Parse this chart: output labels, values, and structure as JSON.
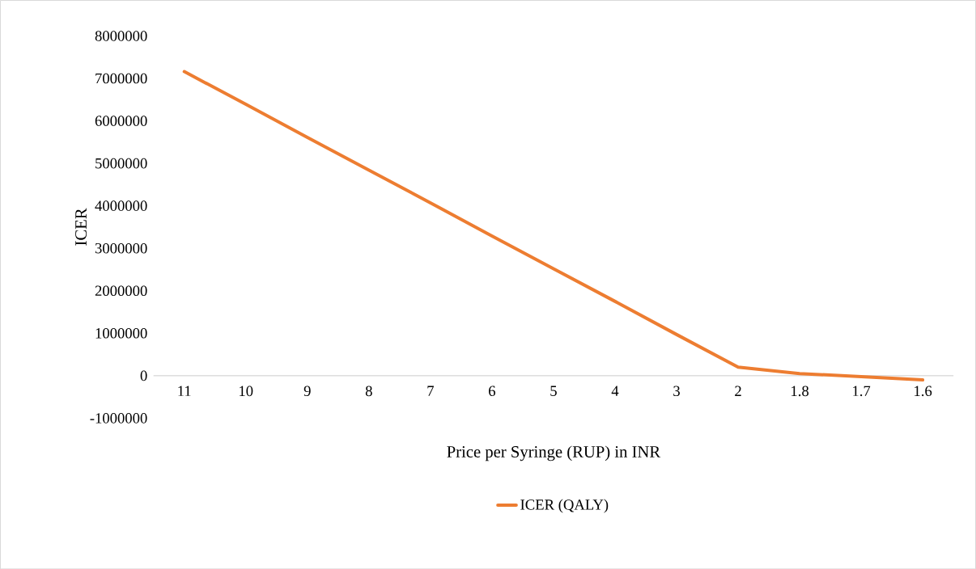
{
  "chart_data": {
    "type": "line",
    "xlabel": "Price per Syringe (RUP) in INR",
    "ylabel": "ICER",
    "categories": [
      "11",
      "10",
      "9",
      "8",
      "7",
      "6",
      "5",
      "4",
      "3",
      "2",
      "1.8",
      "1.7",
      "1.6"
    ],
    "series": [
      {
        "name": "ICER (QALY)",
        "color": "#ed7d31",
        "values": [
          7160000,
          6390000,
          5610000,
          4840000,
          4070000,
          3290000,
          2520000,
          1750000,
          970000,
          200000,
          50000,
          -20000,
          -100000
        ]
      }
    ],
    "ylim": [
      -1000000,
      8000000
    ],
    "yticks": [
      -1000000,
      0,
      1000000,
      2000000,
      3000000,
      4000000,
      5000000,
      6000000,
      7000000,
      8000000
    ],
    "legend": "bottom",
    "marker": "none",
    "line_style": "solid"
  }
}
